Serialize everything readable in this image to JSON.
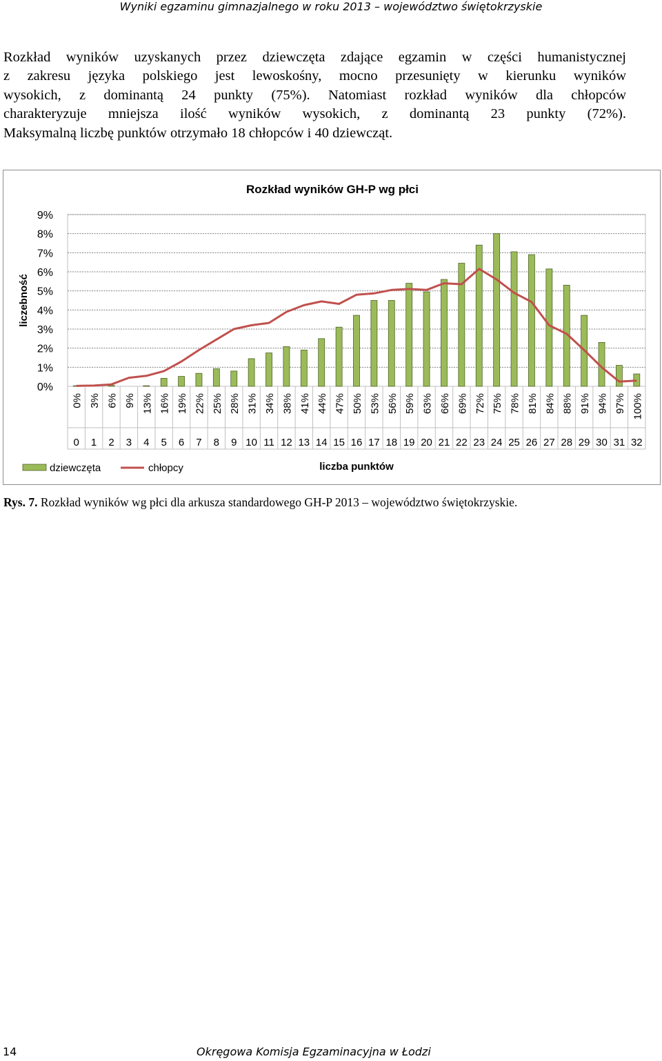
{
  "page": {
    "header": "Wyniki egzaminu gimnazjalnego w roku 2013 – województwo świętokrzyskie",
    "paragraph_lines": [
      "Rozkład wyników uzyskanych przez dziewczęta zdające egzamin w części humanistycznej",
      "z zakresu języka polskiego jest lewoskośny, mocno przesunięty w kierunku wyników",
      "wysokich, z dominantą 24 punkty (75%). Natomiast rozkład wyników dla chłopców",
      "charakteryzuje mniejsza ilość wyników wysokich, z dominantą 23 punkty (72%).",
      "Maksymalną liczbę punktów otrzymało 18 chłopców i 40 dziewcząt."
    ],
    "caption_label": "Rys. 7.",
    "caption_text": " Rozkład wyników wg płci dla arkusza standardowego GH-P 2013 – województwo świętokrzyskie.",
    "page_number": "14",
    "footer": "Okręgowa Komisja Egzaminacyjna w Łodzi"
  },
  "chart_data": {
    "type": "bar",
    "title": "Rozkład wyników GH-P wg płci",
    "xlabel": "liczba punktów",
    "ylabel": "liczebność",
    "ylim": [
      0,
      9
    ],
    "yticks": [
      "0%",
      "1%",
      "2%",
      "3%",
      "4%",
      "5%",
      "6%",
      "7%",
      "8%",
      "9%"
    ],
    "grid": true,
    "legend_position": "bottom-left",
    "categories": [
      "0",
      "1",
      "2",
      "3",
      "4",
      "5",
      "6",
      "7",
      "8",
      "9",
      "10",
      "11",
      "12",
      "13",
      "14",
      "15",
      "16",
      "17",
      "18",
      "19",
      "20",
      "21",
      "22",
      "23",
      "24",
      "25",
      "26",
      "27",
      "28",
      "29",
      "30",
      "31",
      "32"
    ],
    "percent_labels": [
      "0%",
      "3%",
      "6%",
      "9%",
      "13%",
      "16%",
      "19%",
      "22%",
      "25%",
      "28%",
      "31%",
      "34%",
      "38%",
      "41%",
      "44%",
      "47%",
      "50%",
      "53%",
      "56%",
      "59%",
      "63%",
      "66%",
      "69%",
      "72%",
      "75%",
      "78%",
      "81%",
      "84%",
      "88%",
      "91%",
      "94%",
      "97%",
      "100%"
    ],
    "series": [
      {
        "name": "dziewczęta",
        "type": "bar",
        "color": "#9bbb59",
        "values": [
          0.03,
          0,
          0.05,
          0,
          0.03,
          0.42,
          0.52,
          0.68,
          0.92,
          0.8,
          1.45,
          1.75,
          2.08,
          1.9,
          2.5,
          3.1,
          3.72,
          4.5,
          4.5,
          5.4,
          4.95,
          5.6,
          6.45,
          7.4,
          8.0,
          7.05,
          6.9,
          6.15,
          5.3,
          3.72,
          2.3,
          1.1,
          0.65
        ]
      },
      {
        "name": "chłopcy",
        "type": "line",
        "color": "#c0504d",
        "values": [
          0.02,
          0.04,
          0.1,
          0.45,
          0.55,
          0.8,
          1.3,
          1.9,
          2.45,
          3.0,
          3.2,
          3.32,
          3.9,
          4.25,
          4.45,
          4.32,
          4.8,
          4.87,
          5.05,
          5.1,
          5.05,
          5.4,
          5.35,
          6.15,
          5.6,
          4.9,
          4.42,
          3.2,
          2.75,
          1.9,
          1.0,
          0.25,
          0.3
        ]
      }
    ]
  }
}
